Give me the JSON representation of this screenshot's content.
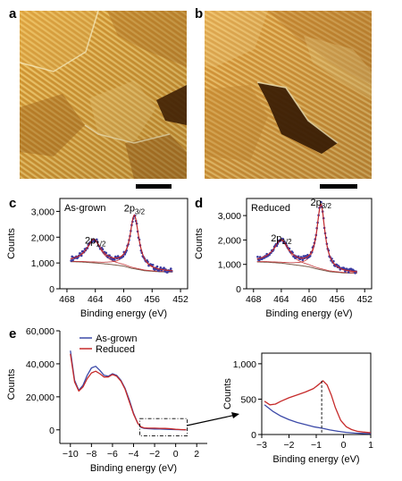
{
  "panels": {
    "a": {
      "label": "a"
    },
    "b": {
      "label": "b"
    },
    "c": {
      "label": "c"
    },
    "d": {
      "label": "d"
    },
    "e": {
      "label": "e"
    }
  },
  "colors": {
    "data_points": "#3a3aa0",
    "fit": "#c0282c",
    "background": "#7a5a4a",
    "as_grown": "#3c4aa8",
    "reduced": "#c62a2a",
    "stm_light": "#f2c86a",
    "stm_dark": "#6a3a08"
  },
  "chart_data": [
    {
      "panel": "c",
      "type": "scatter",
      "annotation": "As-grown",
      "xlabel": "Binding energy (eV)",
      "ylabel": "Counts",
      "x_ticks": [
        "468",
        "464",
        "460",
        "456",
        "452"
      ],
      "y_ticks": [
        "0",
        "1,000",
        "2,000",
        "3,000"
      ],
      "xlim": [
        469,
        451
      ],
      "ylim": [
        0,
        3500
      ],
      "peak_labels": [
        {
          "text": "2p",
          "sub": "1/2",
          "x": 464,
          "y": 1750
        },
        {
          "text": "2p",
          "sub": "3/2",
          "x": 458.5,
          "y": 3000
        }
      ],
      "peaks": [
        {
          "center": 464.2,
          "height": 880,
          "width": 1.2
        },
        {
          "center": 458.5,
          "height": 2050,
          "width": 0.75
        }
      ],
      "background_curve": {
        "x": [
          467.5,
          466,
          464,
          462,
          460,
          459,
          457,
          455,
          453
        ],
        "y": [
          1050,
          1040,
          1000,
          950,
          880,
          800,
          700,
          660,
          650
        ]
      }
    },
    {
      "panel": "d",
      "type": "scatter",
      "annotation": "Reduced",
      "xlabel": "Binding energy (eV)",
      "ylabel": "Counts",
      "x_ticks": [
        "468",
        "464",
        "460",
        "456",
        "452"
      ],
      "y_ticks": [
        "0",
        "1,000",
        "2,000",
        "3,000"
      ],
      "xlim": [
        469,
        451
      ],
      "ylim": [
        0,
        3700
      ],
      "peak_labels": [
        {
          "text": "2p",
          "sub": "1/2",
          "x": 464,
          "y": 1950
        },
        {
          "text": "2p",
          "sub": "3/2",
          "x": 458.3,
          "y": 3400
        }
      ],
      "peaks": [
        {
          "center": 464.0,
          "height": 920,
          "width": 1.3
        },
        {
          "center": 458.3,
          "height": 2650,
          "width": 0.7
        }
      ],
      "background_curve": {
        "x": [
          467.5,
          466,
          464,
          462,
          460,
          459,
          457,
          455,
          453
        ],
        "y": [
          1100,
          1090,
          1050,
          980,
          900,
          820,
          700,
          650,
          640
        ]
      }
    },
    {
      "panel": "e",
      "type": "line",
      "xlabel": "Binding energy (eV)",
      "ylabel": "Counts",
      "x_ticks": [
        "−10",
        "−8",
        "−6",
        "−4",
        "−2",
        "0",
        "2"
      ],
      "y_ticks": [
        "0",
        "20,000",
        "40,000",
        "60,000"
      ],
      "xlim": [
        -11,
        3
      ],
      "ylim": [
        -5000,
        60000
      ],
      "series": [
        {
          "name": "As-grown",
          "x": [
            -10,
            -9.6,
            -9.2,
            -8.8,
            -8.4,
            -8,
            -7.6,
            -7.2,
            -6.8,
            -6.4,
            -6,
            -5.6,
            -5.2,
            -4.8,
            -4.4,
            -4,
            -3.6,
            -3.3,
            -3,
            -2.6,
            -2,
            -1.5,
            -1,
            -0.5,
            0,
            0.5,
            1
          ],
          "y": [
            48000,
            30000,
            24000,
            27000,
            33000,
            37500,
            38500,
            36000,
            33000,
            32500,
            34000,
            33000,
            30000,
            25000,
            18000,
            10000,
            4000,
            1500,
            900,
            700,
            550,
            450,
            350,
            250,
            150,
            80,
            50
          ]
        },
        {
          "name": "Reduced",
          "x": [
            -10,
            -9.6,
            -9.2,
            -8.8,
            -8.4,
            -8,
            -7.6,
            -7.2,
            -6.8,
            -6.4,
            -6,
            -5.6,
            -5.2,
            -4.8,
            -4.4,
            -4,
            -3.6,
            -3.3,
            -3,
            -2.6,
            -2,
            -1.5,
            -1,
            -0.5,
            0,
            0.5,
            1
          ],
          "y": [
            46000,
            29000,
            23500,
            26000,
            31000,
            34500,
            35500,
            34000,
            32000,
            32000,
            33500,
            32500,
            29500,
            24500,
            17000,
            9500,
            4000,
            1800,
            1200,
            1000,
            1000,
            900,
            850,
            700,
            300,
            120,
            60
          ]
        }
      ]
    },
    {
      "panel": "e-inset",
      "type": "line",
      "xlabel": "Binding energy (eV)",
      "ylabel": "Counts",
      "x_ticks": [
        "−3",
        "−2",
        "−1",
        "0",
        "1"
      ],
      "y_ticks": [
        "0",
        "500",
        "1,000"
      ],
      "xlim": [
        -3,
        1
      ],
      "ylim": [
        0,
        1150
      ],
      "marker_x": -0.8,
      "series": [
        {
          "name": "As-grown",
          "x": [
            -2.9,
            -2.6,
            -2.3,
            -2.0,
            -1.7,
            -1.4,
            -1.1,
            -0.8,
            -0.5,
            -0.2,
            0.1,
            0.4,
            0.7,
            1.0
          ],
          "y": [
            420,
            330,
            260,
            210,
            170,
            140,
            110,
            90,
            65,
            45,
            30,
            20,
            15,
            12
          ]
        },
        {
          "name": "Reduced",
          "x": [
            -2.9,
            -2.7,
            -2.5,
            -2.3,
            -2.0,
            -1.7,
            -1.4,
            -1.1,
            -0.9,
            -0.75,
            -0.6,
            -0.45,
            -0.3,
            -0.1,
            0.1,
            0.3,
            0.5,
            0.7,
            1.0
          ],
          "y": [
            470,
            420,
            430,
            470,
            520,
            560,
            600,
            650,
            710,
            760,
            700,
            560,
            380,
            200,
            110,
            70,
            45,
            35,
            25
          ]
        }
      ]
    }
  ]
}
